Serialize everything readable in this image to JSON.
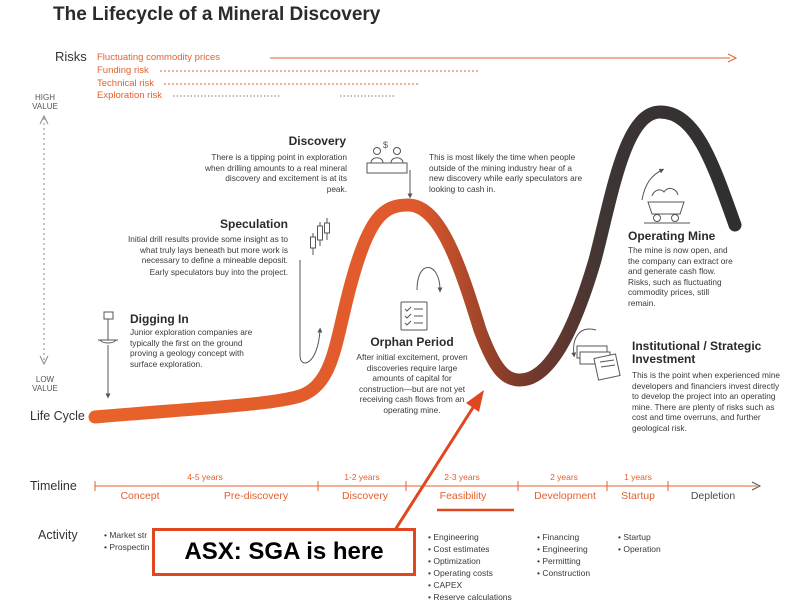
{
  "title": "The Lifecycle of a Mineral Discovery",
  "colors": {
    "accent": "#e2612f",
    "highlight": "#e0461f",
    "curve_dark": "#7a3b2c",
    "text": "#333333"
  },
  "risks": {
    "label": "Risks",
    "items": [
      "Fluctuating commodity prices",
      "Funding risk",
      "Technical risk",
      "Exploration risk"
    ]
  },
  "value_axis": {
    "high": [
      "HIGH",
      "VALUE"
    ],
    "low": [
      "LOW",
      "VALUE"
    ]
  },
  "lifecycle_label": "Life Cycle",
  "stages": {
    "digging_in": {
      "title": "Digging In",
      "body": "Junior exploration companies are typically the first on the ground proving a geology concept with surface exploration.",
      "icon": "drill-icon"
    },
    "speculation": {
      "title": "Speculation",
      "body": "Initial drill results provide some insight as to what truly lays beneath but more work is necessary to define a mineable deposit.",
      "body2": "Early speculators buy into the project.",
      "icon": "candlestick-chart-icon"
    },
    "discovery": {
      "title": "Discovery",
      "body_left": "There is a tipping point in exploration when drilling amounts to a real mineral discovery and excitement is at its peak.",
      "body_right": "This is most likely the time when people outside of the mining industry hear of a new discovery while early speculators are looking to cash in.",
      "icon": "traders-icon"
    },
    "orphan": {
      "title": "Orphan Period",
      "body": "After initial excitement, proven discoveries require large amounts of capital for construction—but are not yet receiving cash flows from an operating mine.",
      "icon": "checklist-icon"
    },
    "operating": {
      "title": "Operating Mine",
      "body": "The mine is now open, and the company can extract ore and generate cash flow. Risks, such as fluctuating commodity prices, still remain.",
      "icon": "mine-cart-icon"
    },
    "institutional": {
      "title": "Institutional / Strategic Investment",
      "body": "This is the point when experienced mine developers and financiers invest directly to develop the project into an operating mine. There are plenty of risks such as cost and time overruns, and further geological risk.",
      "icon": "money-contract-icon"
    }
  },
  "timeline": {
    "label": "Timeline",
    "durations": [
      "4-5 years",
      "1-2 years",
      "2-3 years",
      "2 years",
      "1 years"
    ],
    "phases": [
      "Concept",
      "Pre-discovery",
      "Discovery",
      "Feasibility",
      "Development",
      "Startup",
      "Depletion"
    ]
  },
  "activity": {
    "label": "Activity",
    "col1": [
      "Market str",
      "Prospectin"
    ],
    "col2": [
      "Engineering",
      "Cost estimates",
      "Optimization",
      "Operating costs",
      "CAPEX",
      "Reserve calculations"
    ],
    "col3": [
      "Financing",
      "Engineering",
      "Permitting",
      "Construction"
    ],
    "col4": [
      "Startup",
      "Operation"
    ]
  },
  "callout": "ASX: SGA is here"
}
